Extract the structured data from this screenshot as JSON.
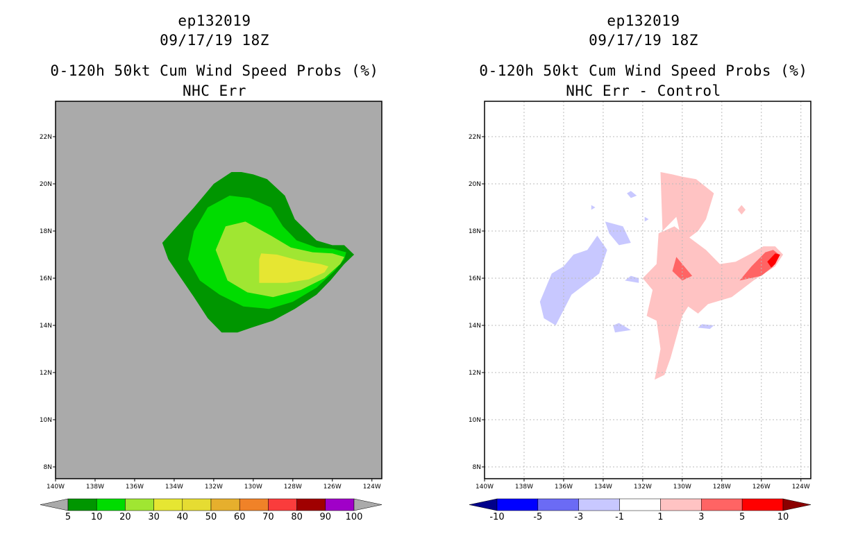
{
  "chart_data": [
    {
      "type": "heatmap",
      "storm_id": "ep132019",
      "datetime": "09/17/19 18Z",
      "title": "0-120h 50kt Cum Wind Speed Probs (%)",
      "subtitle": "NHC Err",
      "xlim": [
        -140,
        -123.5
      ],
      "ylim": [
        7.5,
        23.5
      ],
      "x_ticks": [
        "140W",
        "138W",
        "136W",
        "134W",
        "132W",
        "130W",
        "128W",
        "126W",
        "124W"
      ],
      "y_ticks": [
        "8N",
        "10N",
        "12N",
        "14N",
        "16N",
        "18N",
        "20N",
        "22N"
      ],
      "grid": false,
      "background_color": "#aaaaaa",
      "colorbar": {
        "labels": [
          "5",
          "10",
          "20",
          "30",
          "40",
          "50",
          "60",
          "70",
          "80",
          "90",
          "100"
        ],
        "colors": [
          "#009600",
          "#00dc00",
          "#a0e632",
          "#e6e632",
          "#e6dc32",
          "#e6af2d",
          "#f08228",
          "#fa3c3c",
          "#a00000",
          "#a000c8"
        ],
        "under_color": "#aaaaaa",
        "over_color": "#aaaaaa"
      },
      "contours": [
        {
          "level": "5-10",
          "color": "#009600",
          "points": [
            [
              -134.6,
              17.5
            ],
            [
              -133,
              19
            ],
            [
              -132,
              20
            ],
            [
              -131.1,
              20.5
            ],
            [
              -130.6,
              20.5
            ],
            [
              -130,
              20.4
            ],
            [
              -129.3,
              20.2
            ],
            [
              -128.4,
              19.5
            ],
            [
              -127.9,
              18.5
            ],
            [
              -126.8,
              17.6
            ],
            [
              -126,
              17.4
            ],
            [
              -125.4,
              17.4
            ],
            [
              -124.9,
              17
            ],
            [
              -125.4,
              16.6
            ],
            [
              -126.1,
              15.9
            ],
            [
              -126.8,
              15.3
            ],
            [
              -127.9,
              14.7
            ],
            [
              -129,
              14.2
            ],
            [
              -130.1,
              13.9
            ],
            [
              -130.8,
              13.7
            ],
            [
              -131.6,
              13.7
            ],
            [
              -132.3,
              14.3
            ],
            [
              -133,
              15.2
            ],
            [
              -133.9,
              16.3
            ],
            [
              -134.3,
              16.8
            ]
          ]
        },
        {
          "level": "10-20",
          "color": "#00dc00",
          "points": [
            [
              -133.3,
              16.8
            ],
            [
              -133,
              18
            ],
            [
              -132.3,
              19
            ],
            [
              -131.2,
              19.5
            ],
            [
              -130.2,
              19.4
            ],
            [
              -129.1,
              19
            ],
            [
              -128.5,
              18.2
            ],
            [
              -127.8,
              17.6
            ],
            [
              -126.8,
              17.3
            ],
            [
              -126,
              17.25
            ],
            [
              -125.3,
              17.1
            ],
            [
              -125.4,
              16.8
            ],
            [
              -125.9,
              16.3
            ],
            [
              -126.8,
              15.6
            ],
            [
              -128,
              15
            ],
            [
              -129.2,
              14.7
            ],
            [
              -130.5,
              14.8
            ],
            [
              -131.7,
              15.3
            ],
            [
              -132.7,
              15.9
            ]
          ]
        },
        {
          "level": "20-30",
          "color": "#a0e632",
          "points": [
            [
              -131.9,
              17.2
            ],
            [
              -131.4,
              18.2
            ],
            [
              -130.4,
              18.4
            ],
            [
              -129.1,
              17.8
            ],
            [
              -128.1,
              17.3
            ],
            [
              -127,
              17.1
            ],
            [
              -126,
              17.05
            ],
            [
              -125.4,
              16.9
            ],
            [
              -125.6,
              16.6
            ],
            [
              -126.4,
              16
            ],
            [
              -127.6,
              15.5
            ],
            [
              -129,
              15.2
            ],
            [
              -130.3,
              15.4
            ],
            [
              -131.3,
              15.9
            ]
          ]
        },
        {
          "level": "30-40",
          "color": "#e6e632",
          "points": [
            [
              -129.7,
              16.8
            ],
            [
              -129.6,
              17.05
            ],
            [
              -128.8,
              17
            ],
            [
              -127.7,
              16.75
            ],
            [
              -126.6,
              16.6
            ],
            [
              -126.2,
              16.5
            ],
            [
              -126.4,
              16.25
            ],
            [
              -127.2,
              15.95
            ],
            [
              -128.3,
              15.8
            ],
            [
              -129.7,
              15.8
            ]
          ]
        }
      ]
    },
    {
      "type": "heatmap",
      "storm_id": "ep132019",
      "datetime": "09/17/19 18Z",
      "title": "0-120h 50kt Cum Wind Speed Probs (%)",
      "subtitle": "NHC Err - Control",
      "xlim": [
        -140,
        -123.5
      ],
      "ylim": [
        7.5,
        23.5
      ],
      "x_ticks": [
        "140W",
        "138W",
        "136W",
        "134W",
        "132W",
        "130W",
        "128W",
        "126W",
        "124W"
      ],
      "y_ticks": [
        "8N",
        "10N",
        "12N",
        "14N",
        "16N",
        "18N",
        "20N",
        "22N"
      ],
      "grid": true,
      "background_color": "#ffffff",
      "colorbar": {
        "labels": [
          "-10",
          "-5",
          "-3",
          "-1",
          "1",
          "3",
          "5",
          "10"
        ],
        "colors": [
          "#0000ff",
          "#6b6bf5",
          "#c8c8ff",
          "#ffffff",
          "#ffc3c3",
          "#ff6464",
          "#ff0000"
        ],
        "under_color": "#00008b",
        "over_color": "#8b0000"
      },
      "contours": [
        {
          "level": "-3 to -1",
          "color": "#c8c8ff",
          "points": [
            [
              -137.2,
              15
            ],
            [
              -136.6,
              16.2
            ],
            [
              -136,
              16.5
            ],
            [
              -135.5,
              17
            ],
            [
              -134.8,
              17.2
            ],
            [
              -134.3,
              17.8
            ],
            [
              -133.8,
              17.2
            ],
            [
              -134.2,
              16.2
            ],
            [
              -135.6,
              15.3
            ],
            [
              -136.4,
              14
            ],
            [
              -137,
              14.3
            ]
          ]
        },
        {
          "level": "-3 to -1",
          "color": "#c8c8ff",
          "points": [
            [
              -133.9,
              18.4
            ],
            [
              -133,
              18.2
            ],
            [
              -132.6,
              17.5
            ],
            [
              -133.2,
              17.4
            ],
            [
              -133.7,
              17.9
            ]
          ]
        },
        {
          "level": "-3 to -1",
          "color": "#c8c8ff",
          "points": [
            [
              -132.6,
              16.1
            ],
            [
              -132.2,
              16
            ],
            [
              -132.2,
              15.8
            ],
            [
              -132.9,
              15.9
            ]
          ]
        },
        {
          "level": "-3 to -1",
          "color": "#c8c8ff",
          "points": [
            [
              -133.2,
              14.1
            ],
            [
              -132.6,
              13.8
            ],
            [
              -133.4,
              13.7
            ],
            [
              -133.5,
              14
            ]
          ]
        },
        {
          "level": "-3 to -1",
          "color": "#c8c8ff",
          "points": [
            [
              -129,
              14.05
            ],
            [
              -128.4,
              14
            ],
            [
              -128.6,
              13.85
            ],
            [
              -129.2,
              13.9
            ]
          ]
        },
        {
          "level": "-3 to -1",
          "color": "#c8c8ff",
          "points": [
            [
              -132.6,
              19.7
            ],
            [
              -132.3,
              19.5
            ],
            [
              -132.6,
              19.4
            ],
            [
              -132.8,
              19.6
            ]
          ]
        },
        {
          "level": "-3 to -1",
          "color": "#c8c8ff",
          "points": [
            [
              -134.6,
              19.1
            ],
            [
              -134.4,
              19
            ],
            [
              -134.6,
              18.9
            ]
          ]
        },
        {
          "level": "-3 to -1",
          "color": "#c8c8ff",
          "points": [
            [
              -131.9,
              18.6
            ],
            [
              -131.7,
              18.5
            ],
            [
              -131.9,
              18.4
            ]
          ]
        },
        {
          "level": "1 to 3",
          "color": "#ffc3c3",
          "points": [
            [
              -131.1,
              20.5
            ],
            [
              -130.5,
              20.4
            ],
            [
              -130,
              20.3
            ],
            [
              -129.3,
              20.2
            ],
            [
              -128.4,
              19.6
            ],
            [
              -128.8,
              18.5
            ],
            [
              -129.2,
              18
            ],
            [
              -130,
              17.5
            ],
            [
              -130.3,
              18.6
            ],
            [
              -131,
              18
            ]
          ]
        },
        {
          "level": "1 to 3",
          "color": "#ffc3c3",
          "points": [
            [
              -131.2,
              17.9
            ],
            [
              -130.4,
              18.2
            ],
            [
              -129.6,
              17.7
            ],
            [
              -128.8,
              17.2
            ],
            [
              -128.1,
              16.6
            ],
            [
              -127.3,
              16.7
            ],
            [
              -126.5,
              17.05
            ],
            [
              -125.9,
              17.35
            ],
            [
              -125.3,
              17.35
            ],
            [
              -124.9,
              17
            ],
            [
              -125.3,
              16.5
            ],
            [
              -126.4,
              15.9
            ],
            [
              -127.5,
              15.2
            ],
            [
              -128.7,
              14.9
            ],
            [
              -129.2,
              14.5
            ],
            [
              -129.7,
              14.8
            ],
            [
              -130,
              14.4
            ],
            [
              -130.2,
              13.8
            ],
            [
              -130.4,
              13.2
            ],
            [
              -130.6,
              12.6
            ],
            [
              -130.9,
              11.9
            ],
            [
              -131.4,
              11.7
            ],
            [
              -131.3,
              12.1
            ],
            [
              -131.1,
              13.0
            ],
            [
              -131.3,
              14.2
            ],
            [
              -131.8,
              14.4
            ],
            [
              -131.5,
              15.5
            ],
            [
              -132,
              16
            ],
            [
              -131.3,
              16.6
            ]
          ]
        },
        {
          "level": "1 to 3",
          "color": "#ffc3c3",
          "points": [
            [
              -127,
              19.1
            ],
            [
              -126.8,
              18.9
            ],
            [
              -127,
              18.7
            ],
            [
              -127.2,
              18.9
            ]
          ]
        },
        {
          "level": "3 to 5",
          "color": "#ff6464",
          "points": [
            [
              -130.3,
              16.9
            ],
            [
              -129.5,
              16.1
            ],
            [
              -130,
              15.9
            ],
            [
              -130.5,
              16.3
            ]
          ]
        },
        {
          "level": "3 to 5",
          "color": "#ff6464",
          "points": [
            [
              -126.5,
              16.5
            ],
            [
              -125.8,
              17.1
            ],
            [
              -125.4,
              17.2
            ],
            [
              -125.1,
              17
            ],
            [
              -125.4,
              16.5
            ],
            [
              -126,
              16.1
            ],
            [
              -127.1,
              15.9
            ]
          ]
        },
        {
          "level": "5 to 10",
          "color": "#ff0000",
          "points": [
            [
              -125.7,
              16.7
            ],
            [
              -125.3,
              17.05
            ],
            [
              -125.05,
              17
            ],
            [
              -125.3,
              16.6
            ],
            [
              -125.5,
              16.45
            ]
          ]
        }
      ]
    }
  ]
}
